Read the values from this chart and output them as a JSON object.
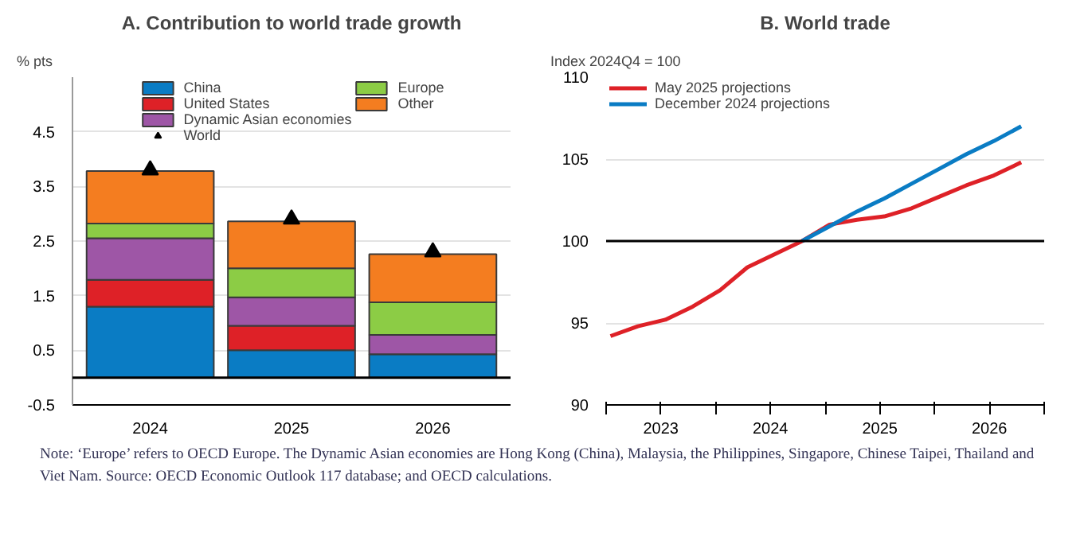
{
  "chart_data": [
    {
      "type": "bar",
      "title": "A. Contribution to world trade growth",
      "ylabel": "% pts",
      "categories": [
        "2024",
        "2025",
        "2026"
      ],
      "stacked": true,
      "series": [
        {
          "name": "China",
          "color": "#0a7cc4",
          "values": [
            1.3,
            0.5,
            0.43
          ]
        },
        {
          "name": "United States",
          "color": "#de2127",
          "values": [
            0.49,
            0.45,
            0
          ]
        },
        {
          "name": "Dynamic Asian economies",
          "color": "#9e56a6",
          "values": [
            0.76,
            0.52,
            0.35
          ]
        },
        {
          "name": "World",
          "type": "scatter",
          "marker": "triangle",
          "color": "#000000",
          "values": [
            3.8,
            2.9,
            2.3
          ]
        },
        {
          "name": "Europe",
          "color": "#8ccc45",
          "values": [
            0.27,
            0.53,
            0.6
          ]
        },
        {
          "name": "Other",
          "color": "#f47d20",
          "values": [
            0.96,
            0.86,
            0.88
          ]
        }
      ],
      "ylim": [
        -0.5,
        5.5
      ],
      "yticks": [
        -0.5,
        0.5,
        1.5,
        2.5,
        3.5,
        4.5
      ],
      "grid": "y",
      "legend": "top",
      "ref_lines": [
        {
          "axis": "y",
          "value": 0,
          "color": "#000000"
        }
      ],
      "annotations": [
        "Note: ‘Europe’ refers to OECD Europe. The Dynamic Asian economies are Hong Kong (China), Malaysia, the Philippines, Singapore, Chinese Taipei, Thailand and Viet Nam.  Source: OECD Economic Outlook 117 database; and OECD calculations."
      ]
    },
    {
      "type": "line",
      "title": "B. World trade",
      "ylabel": "Index 2024Q4 = 100",
      "series": [
        {
          "name": "May 2025 projections",
          "color": "#de2127",
          "x": [
            2023.04,
            2023.29,
            2023.54,
            2023.79,
            2024.04,
            2024.29,
            2024.54,
            2024.79,
            2025.04,
            2025.29,
            2025.54,
            2025.79,
            2026.04,
            2026.29,
            2026.54,
            2026.79
          ],
          "values": [
            94.2,
            94.8,
            95.2,
            96.0,
            97.0,
            98.4,
            99.2,
            100,
            101.0,
            101.3,
            101.5,
            102.0,
            102.7,
            103.4,
            104.0,
            104.8
          ]
        },
        {
          "name": "December 2024 projections",
          "color": "#0a7cc4",
          "x": [
            2024.79,
            2025.04,
            2025.29,
            2025.54,
            2025.79,
            2026.04,
            2026.29,
            2026.54,
            2026.79
          ],
          "values": [
            100,
            100.9,
            101.8,
            102.6,
            103.5,
            104.4,
            105.3,
            106.1,
            107.0
          ]
        }
      ],
      "xlim": [
        2023,
        2027
      ],
      "xticks": [
        {
          "value": 2023,
          "label": null
        },
        {
          "value": 2023.5,
          "label": "2023"
        },
        {
          "value": 2024,
          "label": null
        },
        {
          "value": 2024.5,
          "label": "2024"
        },
        {
          "value": 2025,
          "label": null
        },
        {
          "value": 2025.5,
          "label": "2025"
        },
        {
          "value": 2026,
          "label": null
        },
        {
          "value": 2026.5,
          "label": "2026"
        },
        {
          "value": 2027,
          "label": null
        }
      ],
      "ylim": [
        90,
        110
      ],
      "yticks": [
        90,
        95,
        100,
        105,
        110
      ],
      "grid": "y",
      "legend": "top left",
      "line_style": "solid",
      "ref_lines": [
        {
          "axis": "y",
          "value": 100,
          "color": "#000000"
        }
      ]
    }
  ]
}
